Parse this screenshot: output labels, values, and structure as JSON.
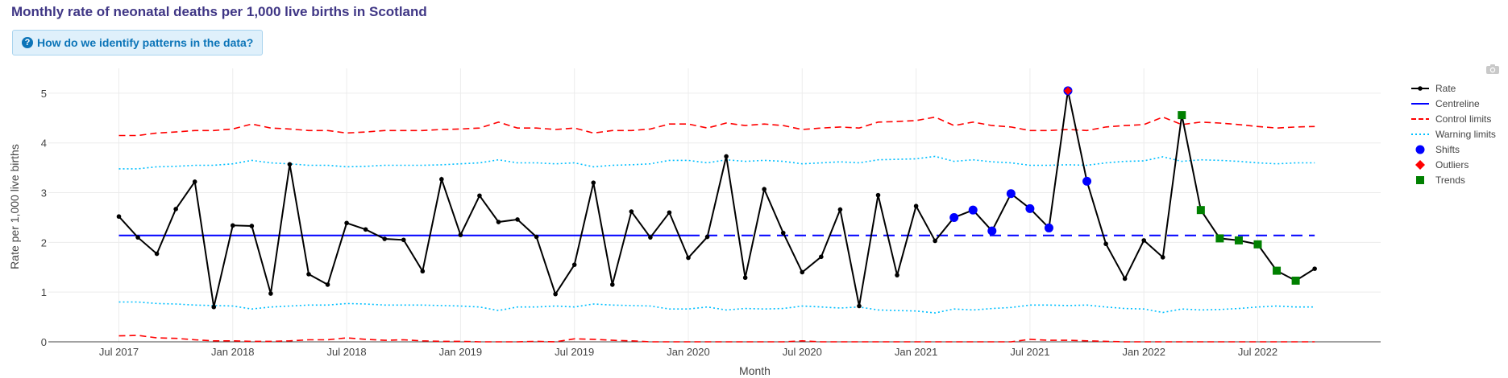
{
  "title": "Monthly rate of neonatal deaths per 1,000 live births in Scotland",
  "help_button": {
    "label": "How do we identify patterns in the data?"
  },
  "toolbar": {
    "camera_icon": "camera-icon"
  },
  "colors": {
    "rate": "#000000",
    "centreline": "#0000ff",
    "control": "#ff0000",
    "warning": "#00bfff",
    "shift": "#0000ff",
    "outlier": "#ff0000",
    "trend": "#008000",
    "title": "#3f3685",
    "button_bg": "#dff0fb",
    "button_text": "#0b74b8"
  },
  "chart_data": {
    "type": "line",
    "xlabel": "Month",
    "ylabel": "Rate per 1,000 live births",
    "ylim": [
      0,
      5.5
    ],
    "yticks": [
      0,
      1,
      2,
      3,
      4,
      5
    ],
    "xticks": [
      "Jul 2017",
      "Jan 2018",
      "Jul 2018",
      "Jan 2019",
      "Jul 2019",
      "Jan 2020",
      "Jul 2020",
      "Jan 2021",
      "Jul 2021",
      "Jan 2022",
      "Jul 2022"
    ],
    "x_start": "2017-07",
    "months": [
      "2017-07",
      "2017-08",
      "2017-09",
      "2017-10",
      "2017-11",
      "2017-12",
      "2018-01",
      "2018-02",
      "2018-03",
      "2018-04",
      "2018-05",
      "2018-06",
      "2018-07",
      "2018-08",
      "2018-09",
      "2018-10",
      "2018-11",
      "2018-12",
      "2019-01",
      "2019-02",
      "2019-03",
      "2019-04",
      "2019-05",
      "2019-06",
      "2019-07",
      "2019-08",
      "2019-09",
      "2019-10",
      "2019-11",
      "2019-12",
      "2020-01",
      "2020-02",
      "2020-03",
      "2020-04",
      "2020-05",
      "2020-06",
      "2020-07",
      "2020-08",
      "2020-09",
      "2020-10",
      "2020-11",
      "2020-12",
      "2021-01",
      "2021-02",
      "2021-03",
      "2021-04",
      "2021-05",
      "2021-06",
      "2021-07",
      "2021-08",
      "2021-09",
      "2021-10",
      "2021-11",
      "2021-12",
      "2022-01",
      "2022-02",
      "2022-03",
      "2022-04",
      "2022-05",
      "2022-06",
      "2022-07",
      "2022-08",
      "2022-09",
      "2022-10"
    ],
    "grid": true,
    "legend_position": "right",
    "series": [
      {
        "name": "Rate",
        "values": [
          2.52,
          2.1,
          1.77,
          2.67,
          3.22,
          0.7,
          2.34,
          2.33,
          0.97,
          3.57,
          1.36,
          1.15,
          2.39,
          2.26,
          2.07,
          2.05,
          1.42,
          3.27,
          2.15,
          2.94,
          2.41,
          2.46,
          2.11,
          0.96,
          1.55,
          3.2,
          1.15,
          2.62,
          2.1,
          2.6,
          1.69,
          2.11,
          3.73,
          1.29,
          3.07,
          2.19,
          1.4,
          1.71,
          2.66,
          0.72,
          2.95,
          1.34,
          2.73,
          2.03,
          2.5,
          2.65,
          2.23,
          2.98,
          2.68,
          2.29,
          5.05,
          3.23,
          1.97,
          1.27,
          2.04,
          1.7,
          4.56,
          2.65,
          2.08,
          2.04,
          1.96,
          1.43,
          1.23,
          1.47
        ]
      },
      {
        "name": "Centreline",
        "value": 2.14,
        "solid_until": "2020-01"
      },
      {
        "name": "Control limits",
        "upper": [
          4.15,
          4.15,
          4.2,
          4.22,
          4.25,
          4.25,
          4.28,
          4.38,
          4.3,
          4.28,
          4.25,
          4.25,
          4.2,
          4.22,
          4.25,
          4.25,
          4.25,
          4.27,
          4.28,
          4.3,
          4.42,
          4.3,
          4.3,
          4.27,
          4.3,
          4.2,
          4.25,
          4.25,
          4.28,
          4.38,
          4.38,
          4.3,
          4.4,
          4.35,
          4.38,
          4.35,
          4.27,
          4.3,
          4.32,
          4.3,
          4.42,
          4.43,
          4.45,
          4.52,
          4.35,
          4.42,
          4.35,
          4.32,
          4.25,
          4.25,
          4.27,
          4.25,
          4.32,
          4.35,
          4.37,
          4.52,
          4.37,
          4.42,
          4.4,
          4.37,
          4.33,
          4.3,
          4.32,
          4.33
        ],
        "lower": [
          0.12,
          0.13,
          0.08,
          0.07,
          0.04,
          0.02,
          0.02,
          0.01,
          0.01,
          0.02,
          0.04,
          0.04,
          0.08,
          0.05,
          0.03,
          0.04,
          0.02,
          0.01,
          0.01,
          0.0,
          0.0,
          0.0,
          0.01,
          0.0,
          0.06,
          0.05,
          0.03,
          0.02,
          0.0,
          0.0,
          0.0,
          0.0,
          0.0,
          0.0,
          0.0,
          0.0,
          0.02,
          0.0,
          0.0,
          0.0,
          0.0,
          0.0,
          0.0,
          0.0,
          0.0,
          0.0,
          0.0,
          0.0,
          0.05,
          0.03,
          0.03,
          0.02,
          0.01,
          0.0,
          0.0,
          0.0,
          0.0,
          0.0,
          0.0,
          0.0,
          0.0,
          0.0,
          0.0,
          0.0
        ]
      },
      {
        "name": "Warning limits",
        "upper": [
          3.48,
          3.48,
          3.52,
          3.53,
          3.55,
          3.55,
          3.58,
          3.65,
          3.6,
          3.58,
          3.55,
          3.55,
          3.52,
          3.53,
          3.55,
          3.55,
          3.55,
          3.56,
          3.58,
          3.6,
          3.66,
          3.6,
          3.6,
          3.58,
          3.6,
          3.52,
          3.55,
          3.56,
          3.58,
          3.65,
          3.65,
          3.6,
          3.66,
          3.63,
          3.65,
          3.63,
          3.58,
          3.6,
          3.62,
          3.6,
          3.66,
          3.67,
          3.68,
          3.73,
          3.63,
          3.66,
          3.62,
          3.6,
          3.55,
          3.55,
          3.56,
          3.55,
          3.6,
          3.63,
          3.64,
          3.72,
          3.63,
          3.66,
          3.65,
          3.63,
          3.6,
          3.58,
          3.6,
          3.6
        ],
        "lower": [
          0.8,
          0.8,
          0.77,
          0.76,
          0.74,
          0.73,
          0.72,
          0.66,
          0.7,
          0.72,
          0.74,
          0.74,
          0.77,
          0.76,
          0.74,
          0.74,
          0.74,
          0.73,
          0.72,
          0.7,
          0.63,
          0.7,
          0.7,
          0.72,
          0.7,
          0.76,
          0.74,
          0.73,
          0.72,
          0.66,
          0.66,
          0.7,
          0.64,
          0.67,
          0.66,
          0.67,
          0.72,
          0.7,
          0.68,
          0.7,
          0.64,
          0.63,
          0.62,
          0.58,
          0.66,
          0.64,
          0.67,
          0.69,
          0.74,
          0.74,
          0.73,
          0.74,
          0.7,
          0.67,
          0.66,
          0.59,
          0.66,
          0.64,
          0.65,
          0.67,
          0.7,
          0.72,
          0.7,
          0.7
        ]
      },
      {
        "name": "Shifts",
        "months": [
          "2021-03",
          "2021-04",
          "2021-05",
          "2021-06",
          "2021-07",
          "2021-08",
          "2021-10"
        ],
        "values": [
          2.5,
          2.65,
          2.23,
          2.98,
          2.68,
          2.29,
          3.23
        ]
      },
      {
        "name": "Outliers",
        "months": [
          "2021-09"
        ],
        "values": [
          5.05
        ]
      },
      {
        "name": "Trends",
        "months": [
          "2022-03",
          "2022-04",
          "2022-05",
          "2022-06",
          "2022-07",
          "2022-08",
          "2022-09"
        ],
        "values": [
          4.56,
          2.65,
          2.08,
          2.04,
          1.96,
          1.43,
          1.23
        ]
      }
    ],
    "legend": [
      "Rate",
      "Centreline",
      "Control limits",
      "Warning limits",
      "Shifts",
      "Outliers",
      "Trends"
    ]
  }
}
